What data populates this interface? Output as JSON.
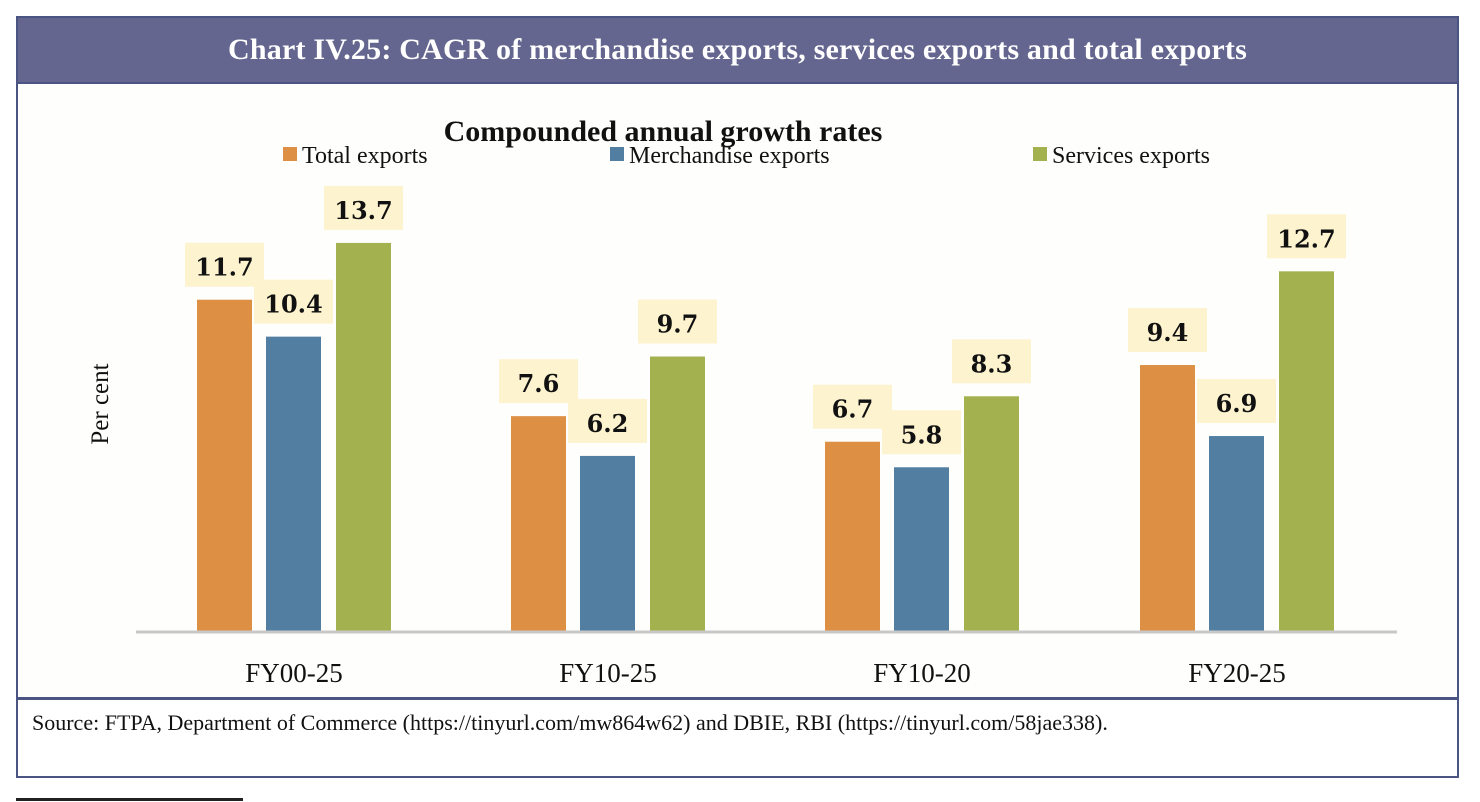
{
  "header": {
    "title": "Chart IV.25: CAGR of merchandise exports, services exports and total exports"
  },
  "source": {
    "text": "Source: FTPA, Department of Commerce (https://tinyurl.com/mw864w62) and DBIE, RBI (https://tinyurl.com/58jae338)."
  },
  "chart_data": {
    "type": "bar",
    "title": "Compounded annual growth rates",
    "ylabel": "Per cent",
    "xlabel": "",
    "categories": [
      "FY00-25",
      "FY10-25",
      "FY10-20",
      "FY20-25"
    ],
    "series": [
      {
        "name": "Total exports",
        "color": "#dd8f43",
        "values": [
          11.7,
          7.6,
          6.7,
          9.4
        ]
      },
      {
        "name": "Merchandise exports",
        "color": "#527fa1",
        "values": [
          10.4,
          6.2,
          5.8,
          6.9
        ]
      },
      {
        "name": "Services exports",
        "color": "#a3b24e",
        "values": [
          13.7,
          9.7,
          8.3,
          12.7
        ]
      }
    ],
    "ylim": [
      0,
      15
    ],
    "grid": false,
    "legend": "top",
    "data_label_background": "#fdf3cf"
  }
}
